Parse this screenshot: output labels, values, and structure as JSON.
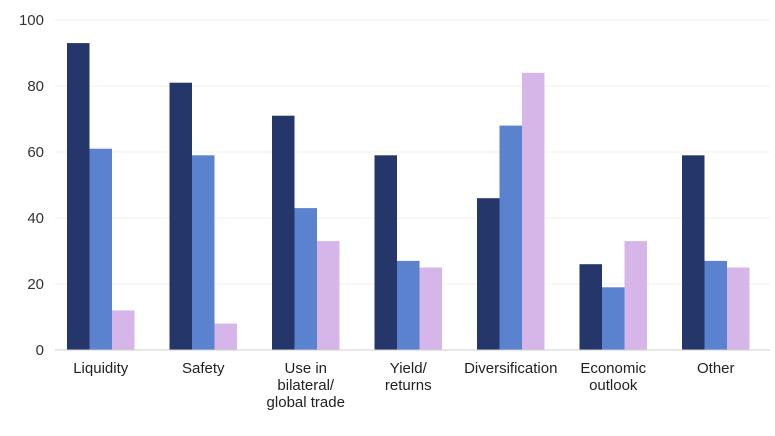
{
  "chart_data": {
    "type": "bar",
    "categories": [
      [
        "Liquidity"
      ],
      [
        "Safety"
      ],
      [
        "Use in",
        "bilateral/",
        "global trade"
      ],
      [
        "Yield/",
        "returns"
      ],
      [
        "Diversification"
      ],
      [
        "Economic",
        "outlook"
      ],
      [
        "Other"
      ]
    ],
    "series": [
      {
        "values": [
          93,
          81,
          71,
          59,
          46,
          26,
          59
        ],
        "color": "#24366a"
      },
      {
        "values": [
          61,
          59,
          43,
          27,
          68,
          19,
          27
        ],
        "color": "#5a82cf"
      },
      {
        "values": [
          12,
          8,
          33,
          25,
          84,
          33,
          25
        ],
        "color": "#d6b6e8"
      }
    ],
    "yticks": [
      0,
      20,
      40,
      60,
      80,
      100
    ],
    "ylim": [
      0,
      100
    ],
    "grid": true,
    "legend": "none"
  }
}
